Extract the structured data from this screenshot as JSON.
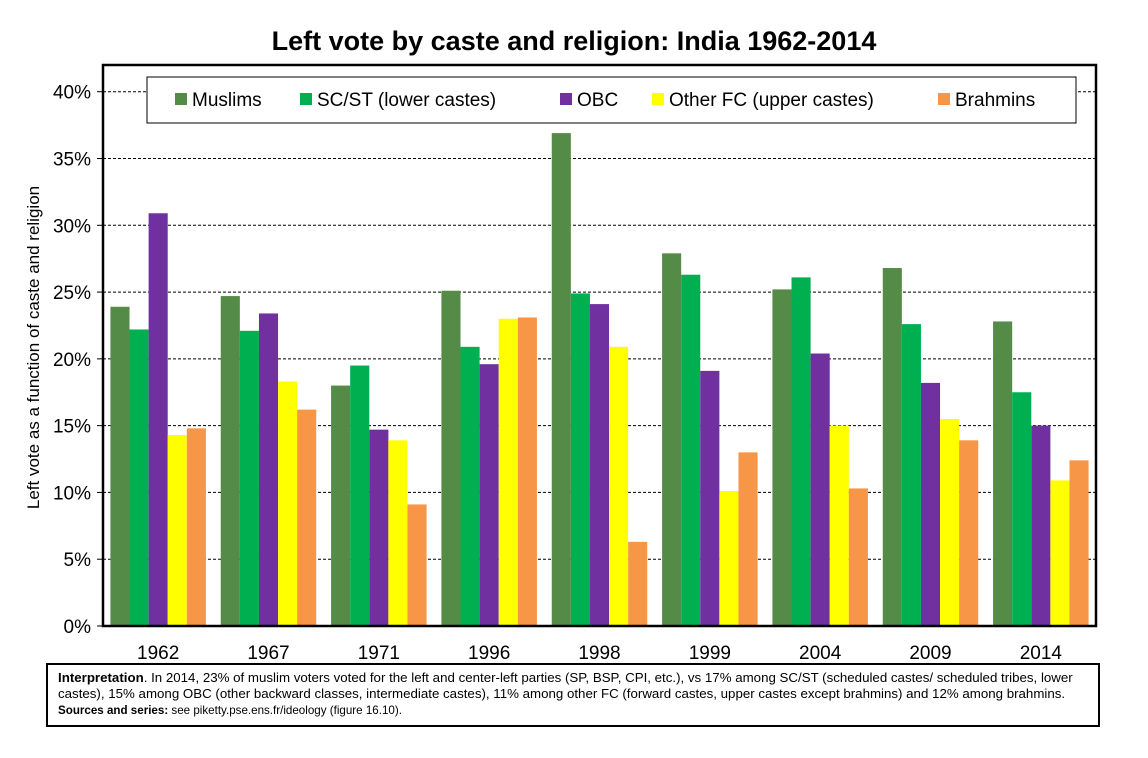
{
  "chart_data": {
    "type": "bar",
    "title": "Left vote by caste and religion: India 1962-2014",
    "xlabel": "",
    "ylabel": "Left vote as a function of caste and religion",
    "ylim": [
      0,
      0.42
    ],
    "yticks": [
      0,
      0.05,
      0.1,
      0.15,
      0.2,
      0.25,
      0.3,
      0.35,
      0.4
    ],
    "ytick_labels": [
      "0%",
      "5%",
      "10%",
      "15%",
      "20%",
      "25%",
      "30%",
      "35%",
      "40%"
    ],
    "grid": "horizontal dashed",
    "legend_position": "top",
    "categories": [
      "1962",
      "1967",
      "1971",
      "1996",
      "1998",
      "1999",
      "2004",
      "2009",
      "2014"
    ],
    "series": [
      {
        "name": "Muslims",
        "color": "#548b46",
        "values": [
          0.239,
          0.247,
          0.18,
          0.251,
          0.369,
          0.279,
          0.252,
          0.268,
          0.228
        ]
      },
      {
        "name": "SC/ST (lower castes)",
        "color": "#00b050",
        "values": [
          0.222,
          0.221,
          0.195,
          0.209,
          0.249,
          0.263,
          0.261,
          0.226,
          0.175
        ]
      },
      {
        "name": "OBC",
        "color": "#7030a0",
        "values": [
          0.309,
          0.234,
          0.147,
          0.196,
          0.241,
          0.191,
          0.204,
          0.182,
          0.15
        ]
      },
      {
        "name": "Other FC (upper castes)",
        "color": "#ffff00",
        "values": [
          0.143,
          0.183,
          0.139,
          0.23,
          0.209,
          0.101,
          0.15,
          0.155,
          0.109
        ]
      },
      {
        "name": "Brahmins",
        "color": "#f79646",
        "values": [
          0.148,
          0.162,
          0.091,
          0.231,
          0.063,
          0.13,
          0.103,
          0.139,
          0.124
        ]
      }
    ]
  },
  "note": {
    "label": "Interpretation",
    "text": ". In 2014, 23% of muslim voters voted for the left and center-left parties (SP, BSP, CPI, etc.), vs 17% among SC/ST (scheduled castes/ scheduled tribes, lower castes), 15% among OBC (other backward classes, intermediate castes), 11% among other FC (forward castes, upper castes except brahmins) and 12% among brahmins.  ",
    "sources_label": "Sources and series:",
    "sources_text": " see piketty.pse.ens.fr/ideology (figure 16.10)."
  }
}
